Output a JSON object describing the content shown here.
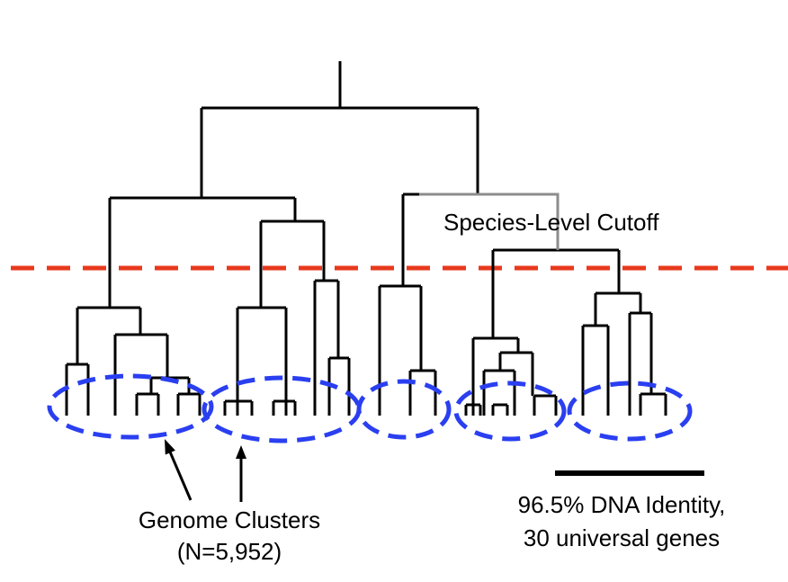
{
  "labels": {
    "cutoff": "Species-Level Cutoff",
    "clusters_line1": "Genome Clusters",
    "clusters_line2": "(N=5,952)",
    "scale_line1": "96.5% DNA Identity,",
    "scale_line2": "30 universal genes"
  },
  "colors": {
    "tree": "#000000",
    "tree_grey": "#8c8c8c",
    "cutoff_line": "#e8391d",
    "cluster_ellipse": "#2a3ff0"
  }
}
